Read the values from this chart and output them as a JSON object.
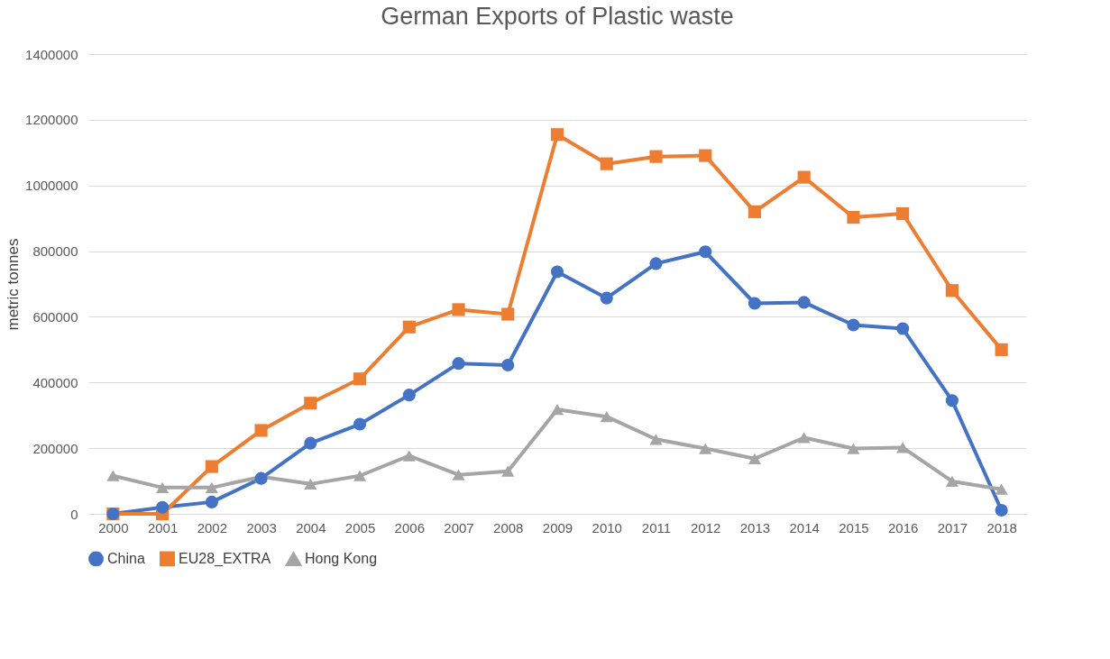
{
  "chart_data": {
    "type": "line",
    "title": "German Exports of Plastic waste",
    "ylabel": "metric tonnes",
    "categories": [
      "2000",
      "2001",
      "2002",
      "2003",
      "2004",
      "2005",
      "2006",
      "2007",
      "2008",
      "2009",
      "2010",
      "2011",
      "2012",
      "2013",
      "2014",
      "2015",
      "2016",
      "2017",
      "2018"
    ],
    "series": [
      {
        "name": "China",
        "color": "#4472c4",
        "marker": "circle",
        "values": [
          0,
          20000,
          36000,
          108000,
          215000,
          273000,
          362000,
          458000,
          453000,
          737000,
          657000,
          762000,
          798000,
          641000,
          644000,
          575000,
          564000,
          345000,
          11000
        ]
      },
      {
        "name": "EU28_EXTRA",
        "color": "#ed7d31",
        "marker": "square",
        "values": [
          0,
          0,
          144000,
          254000,
          337000,
          411000,
          569000,
          622000,
          608000,
          1155000,
          1066000,
          1088000,
          1091000,
          920000,
          1025000,
          903000,
          914000,
          680000,
          500000
        ]
      },
      {
        "name": "Hong Kong",
        "color": "#a5a5a5",
        "marker": "triangle",
        "values": [
          116000,
          80000,
          80000,
          113000,
          91000,
          116000,
          177000,
          119000,
          130000,
          318000,
          296000,
          227000,
          199000,
          168000,
          232000,
          199000,
          202000,
          99000,
          75000
        ]
      }
    ],
    "ylim": [
      0,
      1400000
    ],
    "yticks": [
      0,
      200000,
      400000,
      600000,
      800000,
      1000000,
      1200000,
      1400000
    ],
    "grid": "y",
    "legend": "bottom",
    "line_style": "solid"
  }
}
